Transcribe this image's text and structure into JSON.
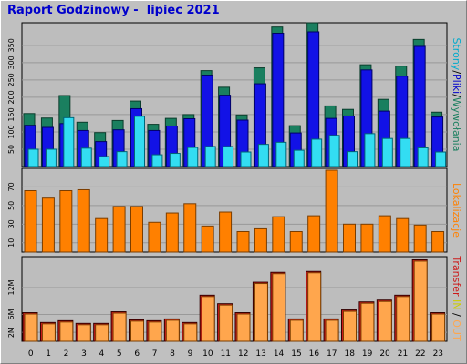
{
  "title": "Raport Godzinowy -  lipiec 2021",
  "colors": {
    "background": "#c0c0c0",
    "plot_bg": "#bdbdbd",
    "grid": "#999999",
    "hits": "#1a7f5f",
    "files": "#1212e6",
    "pages": "#33ddf2",
    "visits": "#ff8000",
    "kbytes": "#ffa64d",
    "kbytes_outer": "#cc1a1a",
    "legend_in_out": "#cccc00"
  },
  "side_labels": {
    "panel1": [
      {
        "text": "Strony",
        "color": "#00aacc"
      },
      {
        "text": "/",
        "color": "#000000"
      },
      {
        "text": "Pliki",
        "color": "#0000cc"
      },
      {
        "text": "/",
        "color": "#000000"
      },
      {
        "text": "Wywołania",
        "color": "#1a7f5f"
      }
    ],
    "panel2": [
      {
        "text": "Lokalizacje",
        "color": "#ff8000"
      }
    ],
    "panel3": [
      {
        "text": "Transfer",
        "color": "#cc1a1a"
      },
      {
        "text": " IN",
        "color": "#cccc00"
      },
      {
        "text": " / ",
        "color": "#000000"
      },
      {
        "text": "OUT",
        "color": "#ffa64d"
      }
    ]
  },
  "chart_data": [
    {
      "type": "bar",
      "categories": [
        "0",
        "1",
        "2",
        "3",
        "4",
        "5",
        "6",
        "7",
        "8",
        "9",
        "10",
        "11",
        "12",
        "13",
        "14",
        "15",
        "16",
        "17",
        "18",
        "19",
        "20",
        "21",
        "22",
        "23"
      ],
      "yticks": [
        50,
        100,
        150,
        200,
        250,
        300,
        350
      ],
      "ylim": [
        0,
        410
      ],
      "grid": true,
      "series": [
        {
          "name": "Wywołania",
          "values": [
            153,
            140,
            205,
            128,
            98,
            133,
            189,
            122,
            139,
            150,
            277,
            229,
            149,
            285,
            403,
            118,
            415,
            175,
            165,
            294,
            194,
            290,
            367,
            157
          ]
        },
        {
          "name": "Pliki",
          "values": [
            119,
            113,
            124,
            104,
            72,
            106,
            167,
            104,
            117,
            138,
            264,
            206,
            134,
            239,
            385,
            97,
            389,
            139,
            146,
            279,
            160,
            261,
            347,
            143
          ]
        },
        {
          "name": "Strony",
          "values": [
            50,
            50,
            141,
            53,
            29,
            43,
            145,
            34,
            38,
            55,
            58,
            58,
            42,
            64,
            70,
            47,
            79,
            90,
            43,
            95,
            81,
            81,
            54,
            42
          ]
        }
      ]
    },
    {
      "type": "bar",
      "categories": [
        "0",
        "1",
        "2",
        "3",
        "4",
        "5",
        "6",
        "7",
        "8",
        "9",
        "10",
        "11",
        "12",
        "13",
        "14",
        "15",
        "16",
        "17",
        "18",
        "19",
        "20",
        "21",
        "22",
        "23"
      ],
      "yticks": [
        10,
        30,
        50,
        70
      ],
      "ylim": [
        0,
        88
      ],
      "grid": true,
      "series": [
        {
          "name": "Lokalizacje",
          "values": [
            66,
            58,
            66,
            67,
            36,
            49,
            49,
            32,
            42,
            52,
            28,
            43,
            22,
            25,
            38,
            22,
            39,
            88,
            30,
            30,
            39,
            36,
            29,
            22
          ]
        }
      ]
    },
    {
      "type": "bar",
      "categories": [
        "0",
        "1",
        "2",
        "3",
        "4",
        "5",
        "6",
        "7",
        "8",
        "9",
        "10",
        "11",
        "12",
        "13",
        "14",
        "15",
        "16",
        "17",
        "18",
        "19",
        "20",
        "21",
        "22",
        "23"
      ],
      "yticks": [
        "2M",
        "6M",
        "12M"
      ],
      "ytick_values": [
        2,
        6,
        12
      ],
      "ylim": [
        0,
        18.5
      ],
      "grid": true,
      "series": [
        {
          "name": "IN",
          "values": [
            6.4,
            4.2,
            4.6,
            4.0,
            4.0,
            6.6,
            4.8,
            4.6,
            5.0,
            4.2,
            10.3,
            8.4,
            6.4,
            13.2,
            15.4,
            5.0,
            15.6,
            5.0,
            7.0,
            8.8,
            9.2,
            10.3,
            18.2,
            6.4
          ]
        },
        {
          "name": "OUT",
          "values": [
            6.1,
            3.9,
            4.3,
            3.7,
            3.7,
            6.3,
            4.5,
            4.3,
            4.7,
            3.9,
            10.0,
            8.1,
            6.1,
            12.9,
            15.1,
            4.7,
            15.3,
            4.7,
            6.7,
            8.5,
            8.9,
            10.0,
            17.9,
            6.1
          ]
        }
      ]
    }
  ]
}
